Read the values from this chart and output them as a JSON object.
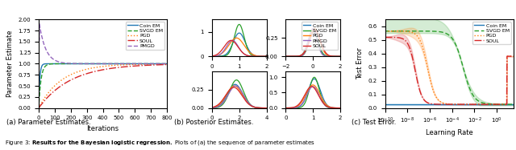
{
  "colors": {
    "coin_em": "#1f77b4",
    "svgd_em": "#2ca02c",
    "pgd": "#ff7f0e",
    "soul": "#d62728",
    "pmgd": "#9467bd"
  },
  "panel_a": {
    "xlabel": "Iterations",
    "ylabel": "Parameter Estimate",
    "xlim": [
      0,
      800
    ],
    "ylim": [
      0.0,
      2.0
    ],
    "caption": "(a) Parameter Estimates."
  },
  "panel_b": {
    "caption": "(b) Posterior Estimates.",
    "top_left": {
      "xlim": [
        0,
        2
      ],
      "ylim": [
        0,
        1.5
      ]
    },
    "top_right": {
      "xlim": [
        -2,
        2
      ],
      "ylim": [
        0,
        0.5
      ]
    },
    "bot_left": {
      "xlim": [
        0,
        4
      ],
      "ylim": [
        0,
        1.5
      ]
    },
    "bot_right": {
      "xlim": [
        0,
        2
      ],
      "ylim": [
        0,
        1.0
      ]
    }
  },
  "panel_c": {
    "xlabel": "Learning Rate",
    "ylabel": "Test Error",
    "xlim_log": [
      -10,
      1.5
    ],
    "ylim": [
      0.0,
      0.65
    ],
    "caption": "(c) Test Error."
  },
  "figure_caption": "Figure 3: Results for the Bayesian logistic regression. Plots of (a) the sequence of parameter estimates"
}
